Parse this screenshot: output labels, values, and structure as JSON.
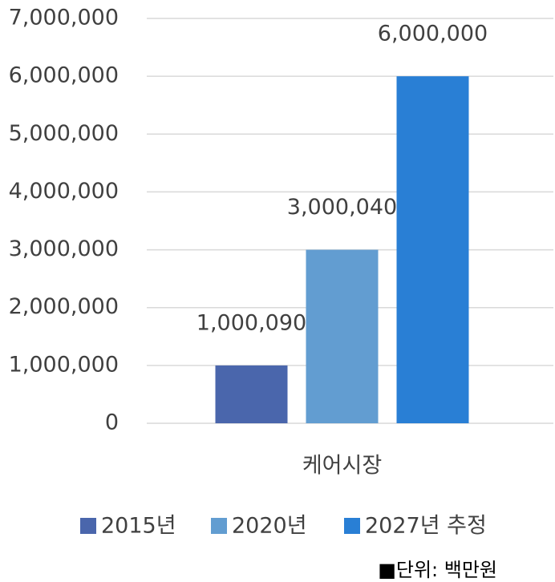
{
  "chart_data": {
    "type": "bar",
    "categories": [
      "케어시장"
    ],
    "series": [
      {
        "name": "2015년",
        "color": "#4a66ac",
        "values": [
          1000090
        ],
        "value_labels": [
          "1,000,090"
        ]
      },
      {
        "name": "2020년",
        "color": "#629dd1",
        "values": [
          3000040
        ],
        "value_labels": [
          "3,000,040"
        ]
      },
      {
        "name": "2027년 추정",
        "color": "#297fd5",
        "values": [
          6000000
        ],
        "value_labels": [
          "6,000,000"
        ]
      }
    ],
    "ylim": [
      0,
      7000000
    ],
    "yticks": [
      0,
      {
        "value": 1000000,
        "label": "1,000,000"
      },
      {
        "value": 2000000,
        "label": "2,000,000"
      },
      {
        "value": 3000000,
        "label": "3,000,000"
      },
      {
        "value": 4000000,
        "label": "4,000,000"
      },
      {
        "value": 5000000,
        "label": "5,000,000"
      },
      {
        "value": 6000000,
        "label": "6,000,000"
      },
      {
        "value": 7000000,
        "label": "7,000,000"
      }
    ],
    "grid": true,
    "legend": "bottom",
    "annotation": "■단위: 백만원"
  }
}
